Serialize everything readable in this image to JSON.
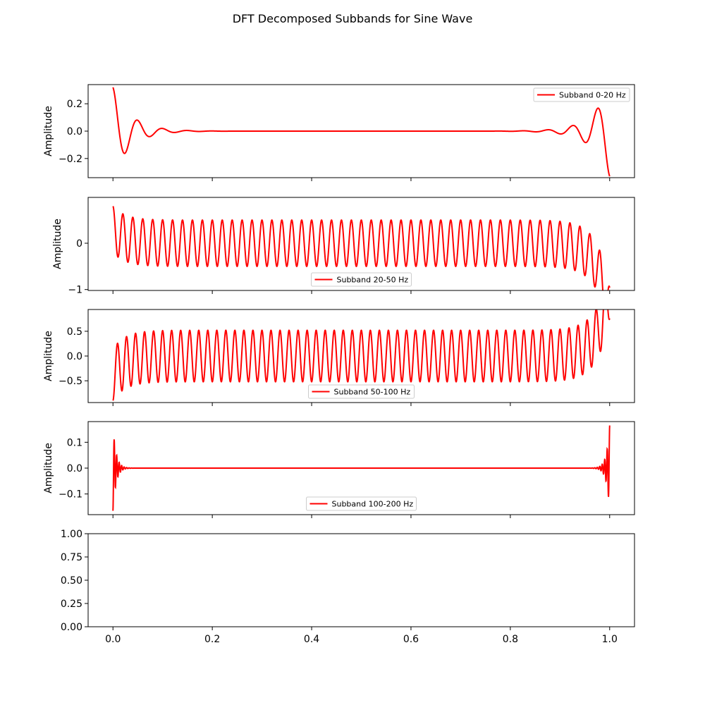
{
  "chart_data": {
    "type": "line",
    "title": "DFT Decomposed Subbands for Sine Wave",
    "xlim": [
      -0.05,
      1.05
    ],
    "xticks": [
      0.0,
      0.2,
      0.4,
      0.6,
      0.8,
      1.0
    ],
    "xtick_labels": [
      "0.0",
      "0.2",
      "0.4",
      "0.6",
      "0.8",
      "1.0"
    ],
    "line_color": "#ff0000",
    "grid": false,
    "panels": [
      {
        "ylabel": "Amplitude",
        "ylim": [
          -0.34,
          0.34
        ],
        "yticks": [
          -0.2,
          0.0,
          0.2
        ],
        "ytick_labels": [
          "−0.2",
          "0.0",
          "0.2"
        ],
        "legend": "upper right",
        "series": [
          {
            "name": "Subband 0-20 Hz",
            "shape": "edge-ringing",
            "start_value": 0.32,
            "end_value": -0.33,
            "ripple_hz": 20,
            "sample_points": [
              [
                0.0,
                0.32
              ],
              [
                0.03,
                -0.07
              ],
              [
                0.055,
                0.04
              ],
              [
                0.08,
                -0.03
              ],
              [
                0.5,
                0.0
              ],
              [
                0.92,
                0.03
              ],
              [
                0.945,
                -0.04
              ],
              [
                0.97,
                0.07
              ],
              [
                1.0,
                -0.33
              ]
            ]
          }
        ]
      },
      {
        "ylabel": "Amplitude",
        "ylim": [
          -1.02,
          0.99
        ],
        "yticks": [
          -1,
          0
        ],
        "ytick_labels": [
          "−1",
          "0"
        ],
        "legend": "lower center",
        "series": [
          {
            "name": "Subband 20-50 Hz",
            "shape": "oscillation",
            "frequency_hz": 50,
            "phase_cycles": 0.25,
            "amplitude": 0.5,
            "start_value": 0.8,
            "end_value": -0.96,
            "peak_overshoot": 0.87,
            "trough_overshoot": -0.77
          }
        ]
      },
      {
        "ylabel": "Amplitude",
        "ylim": [
          -0.94,
          0.94
        ],
        "yticks": [
          -0.5,
          0.0,
          0.5
        ],
        "ytick_labels": [
          "−0.5",
          "0.0",
          "0.5"
        ],
        "legend": "lower center",
        "series": [
          {
            "name": "Subband 50-100 Hz",
            "shape": "oscillation",
            "frequency_hz": 55,
            "phase_cycles": 0.75,
            "amplitude": 0.52,
            "start_value": -0.9,
            "end_value": 0.76,
            "peak_overshoot": 0.83,
            "trough_overshoot": -0.72
          }
        ]
      },
      {
        "ylabel": "Amplitude",
        "ylim": [
          -0.18,
          0.18
        ],
        "yticks": [
          -0.1,
          0.0,
          0.1
        ],
        "ytick_labels": [
          "−0.1",
          "0.0",
          "0.1"
        ],
        "legend": "lower center",
        "series": [
          {
            "name": "Subband 100-200 Hz",
            "shape": "edge-ringing",
            "start_value": -0.165,
            "end_value": 0.165,
            "ripple_hz": 200,
            "sample_points": [
              [
                0.0,
                -0.165
              ],
              [
                0.003,
                0.13
              ],
              [
                0.008,
                -0.055
              ],
              [
                0.012,
                0.04
              ],
              [
                0.5,
                0.0
              ],
              [
                0.992,
                -0.05
              ],
              [
                0.997,
                -0.13
              ],
              [
                1.0,
                0.165
              ]
            ]
          }
        ]
      },
      {
        "ylabel": "",
        "ylim": [
          0.0,
          1.0
        ],
        "yticks": [
          0.0,
          0.25,
          0.5,
          0.75,
          1.0
        ],
        "ytick_labels": [
          "0.00",
          "0.25",
          "0.50",
          "0.75",
          "1.00"
        ],
        "legend": "none",
        "show_xtick_labels": true,
        "series": []
      }
    ]
  }
}
